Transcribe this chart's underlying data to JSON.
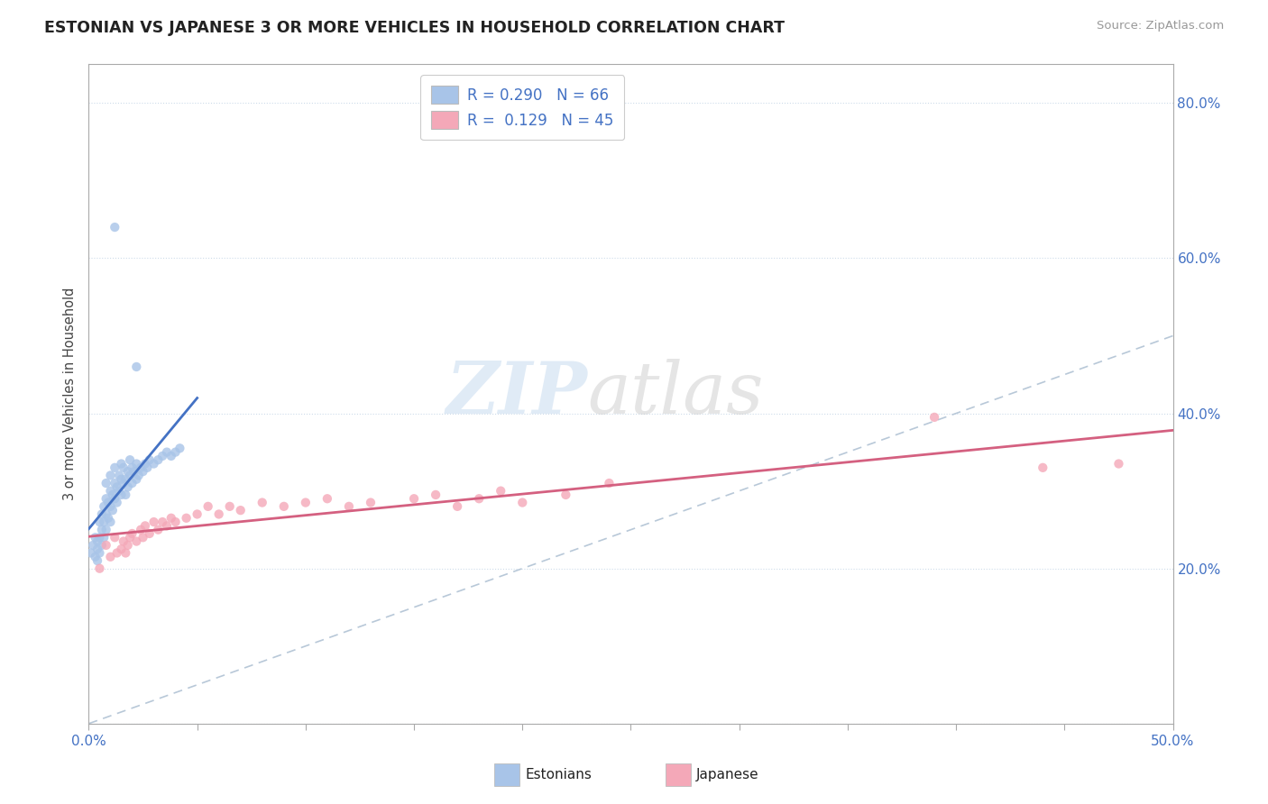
{
  "title": "ESTONIAN VS JAPANESE 3 OR MORE VEHICLES IN HOUSEHOLD CORRELATION CHART",
  "source": "Source: ZipAtlas.com",
  "ylabel": "3 or more Vehicles in Household",
  "xlim": [
    0.0,
    0.5
  ],
  "ylim": [
    0.0,
    0.85
  ],
  "legend_R1": "0.290",
  "legend_N1": "66",
  "legend_R2": "0.129",
  "legend_N2": "45",
  "color_estonian": "#a8c4e8",
  "color_japanese": "#f4a8b8",
  "color_line_estonian": "#4472c4",
  "color_line_japanese": "#d46080",
  "color_diagonal": "#b8c8d8",
  "background_color": "#ffffff",
  "estonian_x": [
    0.001,
    0.002,
    0.003,
    0.003,
    0.004,
    0.004,
    0.004,
    0.005,
    0.005,
    0.005,
    0.006,
    0.006,
    0.006,
    0.007,
    0.007,
    0.007,
    0.008,
    0.008,
    0.008,
    0.008,
    0.009,
    0.009,
    0.01,
    0.01,
    0.01,
    0.01,
    0.011,
    0.011,
    0.012,
    0.012,
    0.012,
    0.013,
    0.013,
    0.014,
    0.014,
    0.015,
    0.015,
    0.015,
    0.016,
    0.016,
    0.017,
    0.017,
    0.018,
    0.018,
    0.019,
    0.019,
    0.02,
    0.02,
    0.021,
    0.022,
    0.022,
    0.023,
    0.024,
    0.025,
    0.026,
    0.027,
    0.028,
    0.03,
    0.032,
    0.034,
    0.036,
    0.038,
    0.04,
    0.042,
    0.012,
    0.022
  ],
  "estonian_y": [
    0.22,
    0.23,
    0.215,
    0.24,
    0.225,
    0.235,
    0.21,
    0.26,
    0.24,
    0.22,
    0.27,
    0.25,
    0.23,
    0.28,
    0.26,
    0.24,
    0.29,
    0.27,
    0.25,
    0.31,
    0.285,
    0.265,
    0.3,
    0.28,
    0.26,
    0.32,
    0.295,
    0.275,
    0.31,
    0.29,
    0.33,
    0.305,
    0.285,
    0.32,
    0.3,
    0.315,
    0.295,
    0.335,
    0.31,
    0.33,
    0.315,
    0.295,
    0.325,
    0.305,
    0.32,
    0.34,
    0.31,
    0.33,
    0.325,
    0.315,
    0.335,
    0.32,
    0.33,
    0.325,
    0.335,
    0.33,
    0.34,
    0.335,
    0.34,
    0.345,
    0.35,
    0.345,
    0.35,
    0.355,
    0.64,
    0.46
  ],
  "japanese_x": [
    0.005,
    0.008,
    0.01,
    0.012,
    0.013,
    0.015,
    0.016,
    0.017,
    0.018,
    0.019,
    0.02,
    0.022,
    0.024,
    0.025,
    0.026,
    0.028,
    0.03,
    0.032,
    0.034,
    0.036,
    0.038,
    0.04,
    0.045,
    0.05,
    0.055,
    0.06,
    0.065,
    0.07,
    0.08,
    0.09,
    0.1,
    0.11,
    0.12,
    0.13,
    0.15,
    0.16,
    0.17,
    0.18,
    0.19,
    0.2,
    0.22,
    0.24,
    0.39,
    0.44,
    0.475
  ],
  "japanese_y": [
    0.2,
    0.23,
    0.215,
    0.24,
    0.22,
    0.225,
    0.235,
    0.22,
    0.23,
    0.24,
    0.245,
    0.235,
    0.25,
    0.24,
    0.255,
    0.245,
    0.26,
    0.25,
    0.26,
    0.255,
    0.265,
    0.26,
    0.265,
    0.27,
    0.28,
    0.27,
    0.28,
    0.275,
    0.285,
    0.28,
    0.285,
    0.29,
    0.28,
    0.285,
    0.29,
    0.295,
    0.28,
    0.29,
    0.3,
    0.285,
    0.295,
    0.31,
    0.395,
    0.33,
    0.335
  ]
}
